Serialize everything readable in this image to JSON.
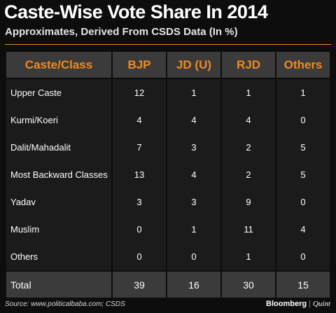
{
  "title": "Caste-Wise Vote Share In 2014",
  "subtitle": "Approximates, Derived From CSDS Data (In %)",
  "source": "Source: www.politicalbaba.com; CSDS",
  "brand": {
    "primary": "Bloomberg",
    "separator": "|",
    "secondary": "Quint"
  },
  "colors": {
    "accent": "#f28a1d",
    "background": "#0d0d0d",
    "header_bg": "#3b3b3b",
    "row_bg": "#1b1b1b"
  },
  "chart_data": {
    "type": "table",
    "title": "Caste-Wise Vote Share In 2014",
    "subtitle": "Approximates, Derived From CSDS Data (In %)",
    "columns": [
      "Caste/Class",
      "BJP",
      "JD (U)",
      "RJD",
      "Others"
    ],
    "rows": [
      {
        "label": "Upper Caste",
        "values": [
          12,
          1,
          1,
          1
        ]
      },
      {
        "label": "Kurmi/Koeri",
        "values": [
          4,
          4,
          4,
          0
        ]
      },
      {
        "label": "Dalit/Mahadalit",
        "values": [
          7,
          3,
          2,
          5
        ]
      },
      {
        "label": "Most Backward Classes",
        "values": [
          13,
          4,
          2,
          5
        ]
      },
      {
        "label": "Yadav",
        "values": [
          3,
          3,
          9,
          0
        ]
      },
      {
        "label": "Muslim",
        "values": [
          0,
          1,
          11,
          4
        ]
      },
      {
        "label": "Others",
        "values": [
          0,
          0,
          1,
          0
        ]
      }
    ],
    "total": {
      "label": "Total",
      "values": [
        39,
        16,
        30,
        15
      ]
    }
  }
}
